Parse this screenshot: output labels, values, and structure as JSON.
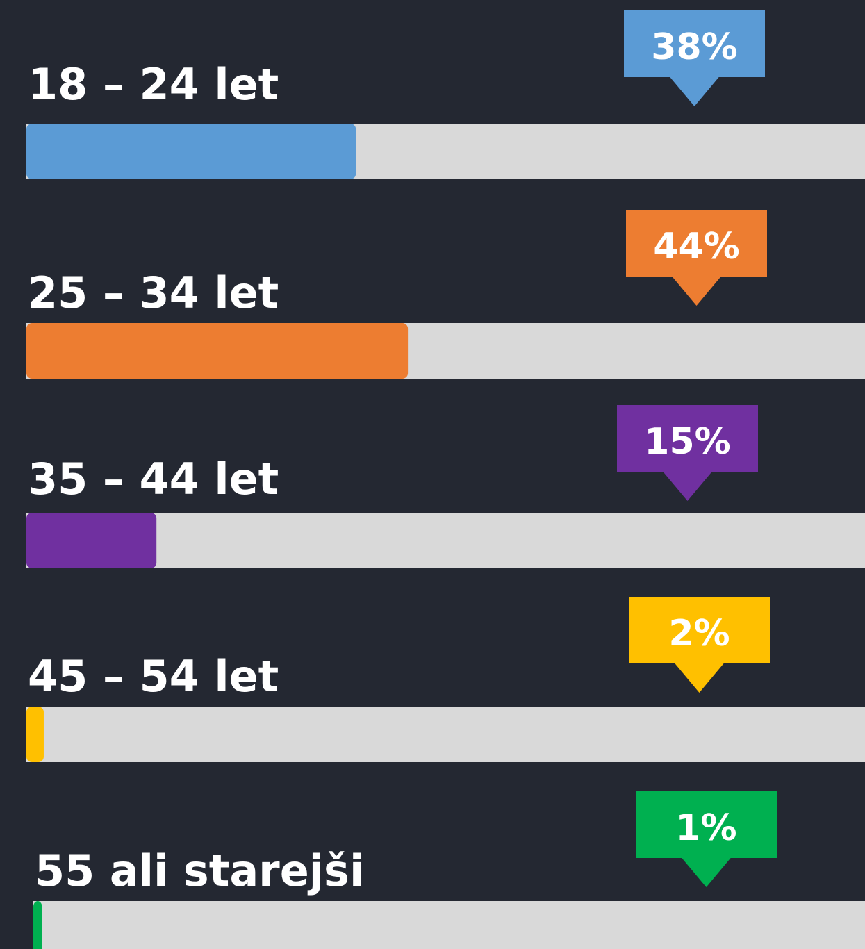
{
  "chart_data": {
    "type": "bar",
    "orientation": "horizontal",
    "categories": [
      "18 – 24 let",
      "25 – 34 let",
      "35 – 44 let",
      "45 – 54 let",
      "55 ali starejši"
    ],
    "values": [
      38,
      44,
      15,
      2,
      1
    ],
    "value_labels": [
      "38%",
      "44%",
      "15%",
      "2%",
      "1%"
    ],
    "colors": [
      "#5b9bd5",
      "#ed7d31",
      "#7030a0",
      "#ffc000",
      "#00b050"
    ],
    "track_color": "#d9d9d9",
    "xlim": [
      0,
      100
    ]
  }
}
